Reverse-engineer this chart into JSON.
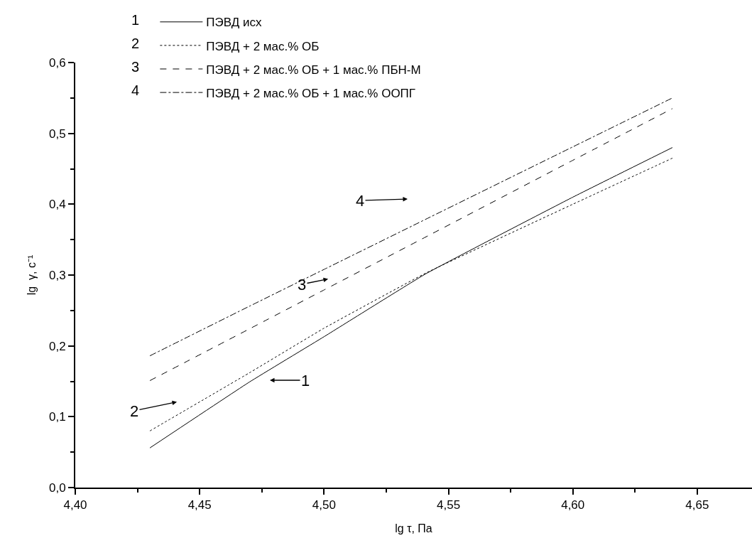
{
  "chart_data": {
    "type": "line",
    "xlabel": "lg τ, Па",
    "ylabel": "lg  γ, с⁻¹",
    "xlim": [
      4.4,
      4.672
    ],
    "xticks": [
      {
        "value": 4.4,
        "label": "4,40"
      },
      {
        "value": 4.45,
        "label": "4,45"
      },
      {
        "value": 4.5,
        "label": "4,50"
      },
      {
        "value": 4.55,
        "label": "4,55"
      },
      {
        "value": 4.6,
        "label": "4,60"
      },
      {
        "value": 4.65,
        "label": "4,65"
      }
    ],
    "ylim": [
      0,
      0.6
    ],
    "yticks": [
      {
        "value": 0,
        "label": "0,0"
      },
      {
        "value": 0.1,
        "label": "0,1"
      },
      {
        "value": 0.2,
        "label": "0,2"
      },
      {
        "value": 0.3,
        "label": "0,3"
      },
      {
        "value": 0.4,
        "label": "0,4"
      },
      {
        "value": 0.5,
        "label": "0,5"
      },
      {
        "value": 0.6,
        "label": "0,6"
      }
    ],
    "legend": "top left",
    "marker": "none",
    "x": [
      4.43,
      4.47,
      4.5,
      4.541,
      4.6,
      4.64
    ],
    "series": [
      {
        "name": "ПЭВД исх",
        "color": "#000000",
        "line_style": "solid",
        "values": [
          0.056,
          0.149,
          0.213,
          0.302,
          0.41,
          0.48
        ]
      },
      {
        "name": "ПЭВД + 2 мас.% ОБ",
        "color": "#000000",
        "line_style": "dotted",
        "values": [
          0.08,
          0.162,
          0.225,
          0.303,
          0.4,
          0.465
        ]
      },
      {
        "name": "ПЭВД + 2 мас.% ОБ + 1 мас.% ПБН-М",
        "color": "#000000",
        "line_style": "dashed",
        "values": [
          0.151,
          0.224,
          0.279,
          0.354,
          0.462,
          0.535
        ]
      },
      {
        "name": "ПЭВД + 2 мас.% ОБ + 1 мас.% ООПГ",
        "color": "#000000",
        "line_style": "dashdot",
        "values": [
          0.186,
          0.256,
          0.308,
          0.379,
          0.481,
          0.55
        ]
      }
    ],
    "annotations": [
      "1",
      "2",
      "3",
      "4",
      "1",
      "2",
      "3",
      "4"
    ]
  }
}
